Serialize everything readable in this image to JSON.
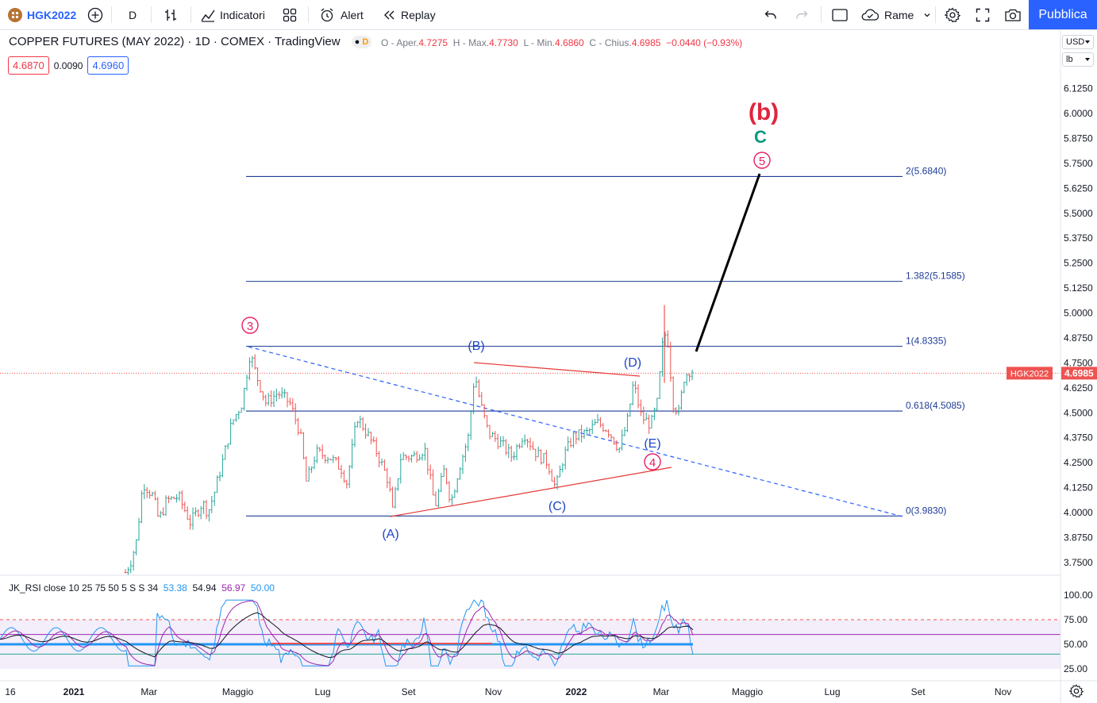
{
  "toolbar": {
    "symbol": "HGK2022",
    "interval": "D",
    "indicators_label": "Indicatori",
    "alert_label": "Alert",
    "replay_label": "Replay",
    "layout_name": "Rame",
    "publish_label": "Pubblica"
  },
  "legend": {
    "title": "COPPER FUTURES (MAY 2022) · 1D · COMEX · TradingView",
    "delay_badge": "D",
    "ohlc": {
      "o_label": "O - Aper.",
      "o": "4.7275",
      "h_label": "H - Max.",
      "h": "4.7730",
      "l_label": "L - Min.",
      "l": "4.6860",
      "c_label": "C - Chius.",
      "c": "4.6985",
      "change": "−0.0440 (−0.93%)"
    },
    "bid": "4.6870",
    "spread": "0.0090",
    "ask": "4.6960"
  },
  "axis_units": {
    "currency": "USD",
    "unit": "lb"
  },
  "rsi_legend": {
    "name": "JK_RSI close 10 25 75 50 5 S S 34",
    "v1": "53.38",
    "v2": "54.94",
    "v3": "56.97",
    "v4": "50.00"
  },
  "colors": {
    "up": "#26a69a",
    "down": "#ef5350",
    "fib": "#1e3c96",
    "wave_blue": "#1e45c8",
    "wave_pink": "#e91e63",
    "wave_red": "#e0243c",
    "wave_green": "#089981",
    "triangle": "#e53935",
    "trend": "#2962ff",
    "price_tag": "#ef5350"
  },
  "chart_data": {
    "type": "candlestick",
    "price_axis": {
      "ticks": [
        "6.1250",
        "6.0000",
        "5.8750",
        "5.7500",
        "5.6250",
        "5.5000",
        "5.3750",
        "5.2500",
        "5.1250",
        "5.0000",
        "4.8750",
        "4.7500",
        "4.6250",
        "4.5000",
        "4.3750",
        "4.2500",
        "4.1250",
        "4.0000",
        "3.8750",
        "3.7500"
      ]
    },
    "time_axis": {
      "ticks": [
        "16",
        "2021",
        "Mar",
        "Maggio",
        "Lug",
        "Set",
        "Nov",
        "2022",
        "Mar",
        "Maggio",
        "Lug",
        "Set",
        "Nov"
      ]
    },
    "last_price": {
      "symbol": "HGK2022",
      "value": "4.6985"
    },
    "fib_levels": [
      {
        "label": "2(5.6840)",
        "value": 5.684
      },
      {
        "label": "1.382(5.1585)",
        "value": 5.1585
      },
      {
        "label": "1(4.8335)",
        "value": 4.8335
      },
      {
        "label": "0.618(4.5085)",
        "value": 4.5085
      },
      {
        "label": "0(3.9830)",
        "value": 3.983
      }
    ],
    "wave_labels": {
      "b": "(b)",
      "c": "C",
      "five": "5",
      "three": "3",
      "four": "4",
      "A": "(A)",
      "B": "(B)",
      "C": "(C)",
      "D": "(D)",
      "E": "(E)"
    },
    "rsi_panel": {
      "ticks": [
        "100.00",
        "75.00",
        "50.00",
        "25.00"
      ],
      "levels": [
        75,
        60,
        50,
        40
      ]
    }
  }
}
